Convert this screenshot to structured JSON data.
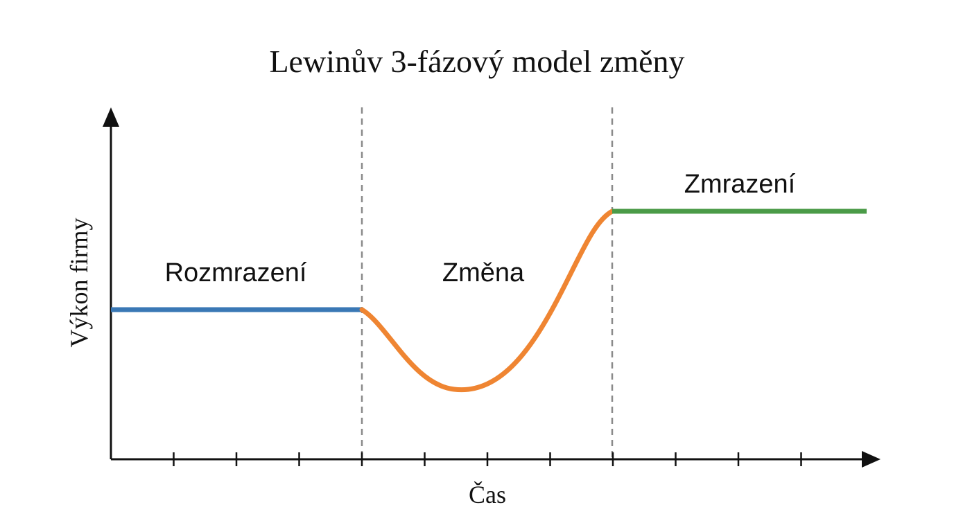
{
  "title": "Lewinův 3-fázový model změny",
  "axes": {
    "x_label": "Čas",
    "y_label": "Výkon firmy",
    "x_tick_count": 12
  },
  "phases": [
    {
      "label": "Rozmrazení",
      "color": "#3a78b5"
    },
    {
      "label": "Změna",
      "color": "#ef8532"
    },
    {
      "label": "Zmrazení",
      "color": "#4b9b48"
    }
  ],
  "colors": {
    "axis": "#111111",
    "divider": "#8a8a8a"
  }
}
